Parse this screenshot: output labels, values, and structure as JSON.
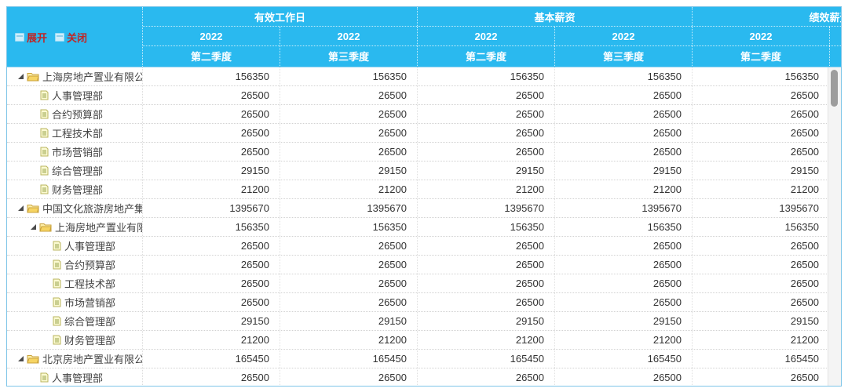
{
  "toolbar": {
    "expand_label": "展开",
    "collapse_label": "关闭"
  },
  "header": {
    "groups": [
      {
        "label": "有效工作日"
      },
      {
        "label": "基本薪资"
      },
      {
        "label": "绩效薪资"
      }
    ],
    "years": [
      "2022",
      "2022",
      "2022",
      "2022",
      "2022"
    ],
    "quarters": [
      "第二季度",
      "第三季度",
      "第二季度",
      "第三季度",
      "第二季度"
    ]
  },
  "rows": [
    {
      "level": 0,
      "kind": "company",
      "label": "上海房地产置业有限公司",
      "values": [
        156350,
        156350,
        156350,
        156350,
        156350
      ]
    },
    {
      "level": 1,
      "kind": "dept",
      "label": "人事管理部",
      "values": [
        26500,
        26500,
        26500,
        26500,
        26500
      ]
    },
    {
      "level": 1,
      "kind": "dept",
      "label": "合约预算部",
      "values": [
        26500,
        26500,
        26500,
        26500,
        26500
      ]
    },
    {
      "level": 1,
      "kind": "dept",
      "label": "工程技术部",
      "values": [
        26500,
        26500,
        26500,
        26500,
        26500
      ]
    },
    {
      "level": 1,
      "kind": "dept",
      "label": "市场营销部",
      "values": [
        26500,
        26500,
        26500,
        26500,
        26500
      ]
    },
    {
      "level": 1,
      "kind": "dept",
      "label": "综合管理部",
      "values": [
        29150,
        29150,
        29150,
        29150,
        29150
      ]
    },
    {
      "level": 1,
      "kind": "dept",
      "label": "财务管理部",
      "values": [
        21200,
        21200,
        21200,
        21200,
        21200
      ]
    },
    {
      "level": 0,
      "kind": "company",
      "label": "中国文化旅游房地产集团",
      "values": [
        1395670,
        1395670,
        1395670,
        1395670,
        1395670
      ]
    },
    {
      "level": 1,
      "kind": "company",
      "label": "上海房地产置业有限公司",
      "values": [
        156350,
        156350,
        156350,
        156350,
        156350
      ]
    },
    {
      "level": 2,
      "kind": "dept",
      "label": "人事管理部",
      "values": [
        26500,
        26500,
        26500,
        26500,
        26500
      ]
    },
    {
      "level": 2,
      "kind": "dept",
      "label": "合约预算部",
      "values": [
        26500,
        26500,
        26500,
        26500,
        26500
      ]
    },
    {
      "level": 2,
      "kind": "dept",
      "label": "工程技术部",
      "values": [
        26500,
        26500,
        26500,
        26500,
        26500
      ]
    },
    {
      "level": 2,
      "kind": "dept",
      "label": "市场营销部",
      "values": [
        26500,
        26500,
        26500,
        26500,
        26500
      ]
    },
    {
      "level": 2,
      "kind": "dept",
      "label": "综合管理部",
      "values": [
        29150,
        29150,
        29150,
        29150,
        29150
      ]
    },
    {
      "level": 2,
      "kind": "dept",
      "label": "财务管理部",
      "values": [
        21200,
        21200,
        21200,
        21200,
        21200
      ]
    },
    {
      "level": 0,
      "kind": "company",
      "label": "北京房地产置业有限公司",
      "values": [
        165450,
        165450,
        165450,
        165450,
        165450
      ]
    },
    {
      "level": 1,
      "kind": "dept",
      "label": "人事管理部",
      "values": [
        26500,
        26500,
        26500,
        26500,
        26500
      ]
    }
  ],
  "colors": {
    "header_bg": "#2ab9ef",
    "header_text": "#ffffff",
    "link_red": "#bf2626",
    "body_text": "#444444",
    "folder_yellow": "#f6d463",
    "scrollbar_thumb": "#9d9d9d"
  }
}
